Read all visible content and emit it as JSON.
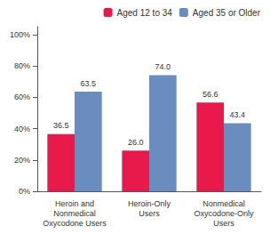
{
  "chart_data": {
    "type": "bar",
    "categories": [
      "Heroin and\nNonmedical\nOxycodone Users",
      "Heroin-Only\nUsers",
      "Nonmedical\nOxycodone-Only\nUsers"
    ],
    "series": [
      {
        "name": "Aged 12 to 34",
        "color": "#E8194B",
        "values": [
          36.5,
          26.0,
          56.6
        ],
        "value_labels": [
          "36.5",
          "26.0",
          "56.6"
        ]
      },
      {
        "name": "Aged 35 or Older",
        "color": "#6B8CBE",
        "values": [
          63.5,
          74.0,
          43.4
        ],
        "value_labels": [
          "63.5",
          "74.0",
          "43.4"
        ]
      }
    ],
    "ylim": [
      0,
      105
    ],
    "yticks": [
      {
        "value": 0,
        "label": "0%"
      },
      {
        "value": 20,
        "label": "20%"
      },
      {
        "value": 40,
        "label": "40%"
      },
      {
        "value": 60,
        "label": "60%"
      },
      {
        "value": 80,
        "label": "80%"
      },
      {
        "value": 100,
        "label": "100%"
      }
    ],
    "grid": false,
    "legend": "upper right",
    "data_labels": true
  }
}
